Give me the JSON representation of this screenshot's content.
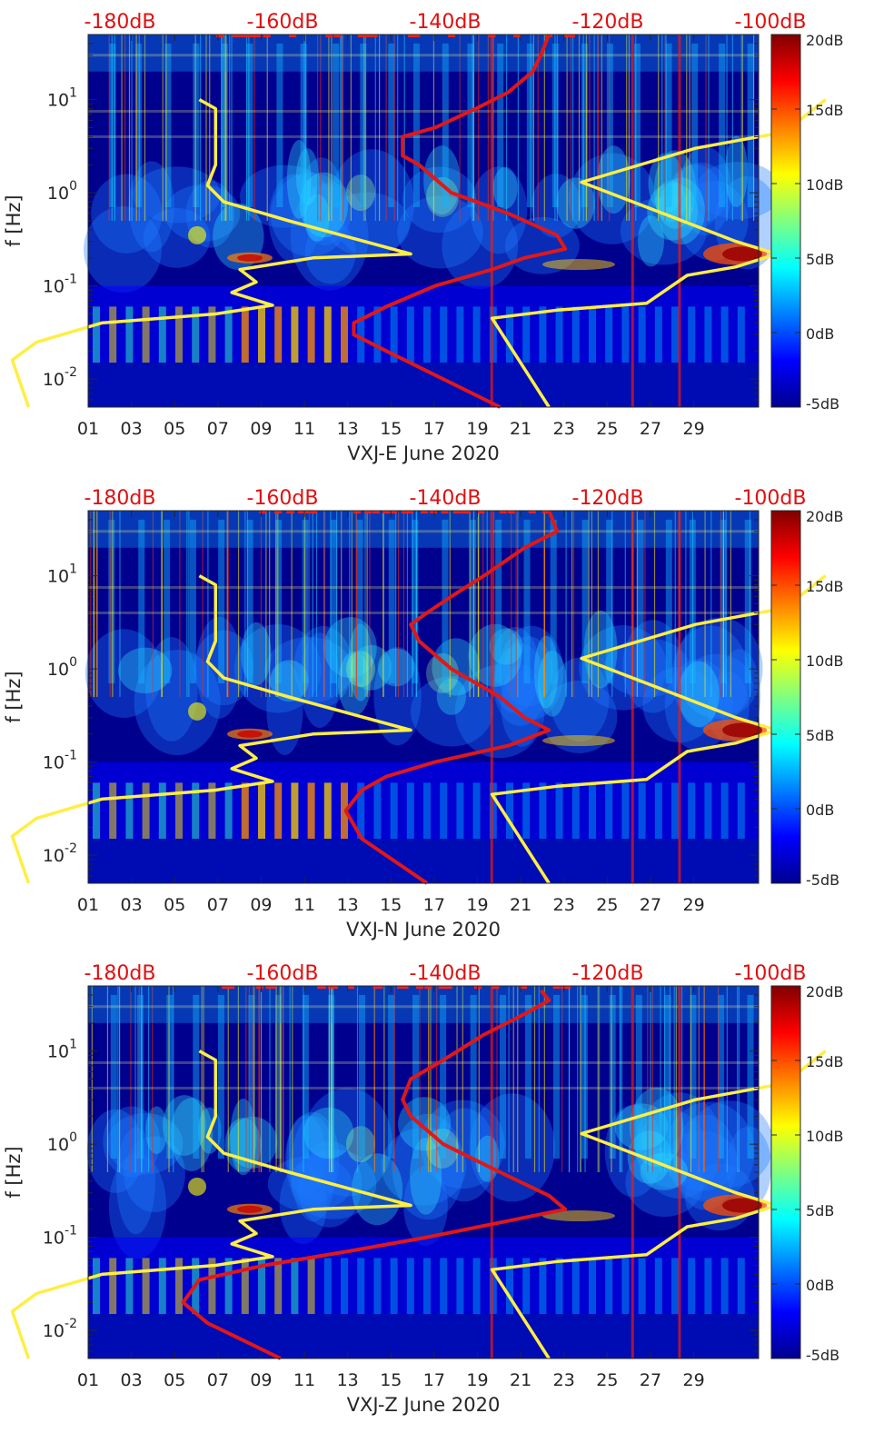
{
  "colors": {
    "spectrogram_low": "#00008f",
    "spectrogram_high": "#800000",
    "noise_model_line": "#ffee44",
    "median_psd_line": "#e01818",
    "top_axis_label": "#e01010"
  },
  "chart_data": [
    {
      "type": "heatmap",
      "title": "",
      "xlabel": "VXJ-E June 2020",
      "ylabel": "f [Hz]",
      "y_scale": "log",
      "ylim": [
        0.005,
        50
      ],
      "xlim": [
        1,
        32
      ],
      "x_tick_labels": [
        "01",
        "03",
        "05",
        "07",
        "09",
        "11",
        "13",
        "15",
        "17",
        "19",
        "21",
        "23",
        "25",
        "27",
        "29"
      ],
      "y_tick_labels": [
        {
          "base": "10",
          "exp": "-2"
        },
        {
          "base": "10",
          "exp": "-1"
        },
        {
          "base": "10",
          "exp": "0"
        },
        {
          "base": "10",
          "exp": "1"
        }
      ],
      "top_axis_labels": [
        "-180dB",
        "-160dB",
        "-140dB",
        "-120dB",
        "-100dB"
      ],
      "colorbar": {
        "range": [
          -5,
          20
        ],
        "tick_labels": [
          "20dB",
          "15dB",
          "10dB",
          "5dB",
          "0dB",
          "-5dB"
        ]
      },
      "grid": false,
      "overlay_lines": [
        {
          "color": "yellow",
          "label": "",
          "points": [
            [
              -189,
              0.005
            ],
            [
              -191,
              0.016
            ],
            [
              -188,
              0.025
            ],
            [
              -180,
              0.04
            ],
            [
              -166,
              0.05
            ],
            [
              -159,
              0.062
            ],
            [
              -164,
              0.085
            ],
            [
              -161,
              0.11
            ],
            [
              -163,
              0.15
            ],
            [
              -154,
              0.2
            ],
            [
              -142,
              0.22
            ],
            [
              -157,
              0.5
            ],
            [
              -165,
              0.8
            ],
            [
              -167,
              1.2
            ],
            [
              -166,
              2
            ],
            [
              -166,
              5
            ],
            [
              -166,
              8
            ],
            [
              -168,
              10
            ]
          ]
        },
        {
          "color": "yellow",
          "label": "",
          "points": [
            [
              -125,
              0.005
            ],
            [
              -132,
              0.045
            ],
            [
              -124,
              0.055
            ],
            [
              -113,
              0.065
            ],
            [
              -108,
              0.13
            ],
            [
              -102,
              0.16
            ],
            [
              -97,
              0.22
            ],
            [
              -102,
              0.3
            ],
            [
              -121,
              1.3
            ],
            [
              -107,
              3
            ],
            [
              -96,
              4.5
            ],
            [
              -91,
              10
            ]
          ]
        },
        {
          "color": "red",
          "label": "",
          "points": [
            [
              -131,
              0.005
            ],
            [
              -145,
              0.02
            ],
            [
              -149,
              0.03
            ],
            [
              -149,
              0.04
            ],
            [
              -145,
              0.06
            ],
            [
              -139,
              0.1
            ],
            [
              -132,
              0.15
            ],
            [
              -128,
              0.2
            ],
            [
              -123,
              0.25
            ],
            [
              -124,
              0.35
            ],
            [
              -130,
              0.6
            ],
            [
              -137,
              1
            ],
            [
              -141,
              2
            ],
            [
              -143,
              2.5
            ],
            [
              -143,
              4
            ],
            [
              -139,
              5
            ],
            [
              -134,
              8
            ],
            [
              -130,
              12
            ],
            [
              -127,
              20
            ],
            [
              -126,
              30
            ],
            [
              -125,
              50
            ]
          ]
        }
      ]
    },
    {
      "type": "heatmap",
      "title": "",
      "xlabel": "VXJ-N June 2020",
      "ylabel": "f [Hz]",
      "y_scale": "log",
      "ylim": [
        0.005,
        50
      ],
      "xlim": [
        1,
        32
      ],
      "x_tick_labels": [
        "01",
        "03",
        "05",
        "07",
        "09",
        "11",
        "13",
        "15",
        "17",
        "19",
        "21",
        "23",
        "25",
        "27",
        "29"
      ],
      "y_tick_labels": [
        {
          "base": "10",
          "exp": "-2"
        },
        {
          "base": "10",
          "exp": "-1"
        },
        {
          "base": "10",
          "exp": "0"
        },
        {
          "base": "10",
          "exp": "1"
        }
      ],
      "top_axis_labels": [
        "-180dB",
        "-160dB",
        "-140dB",
        "-120dB",
        "-100dB"
      ],
      "colorbar": {
        "range": [
          -5,
          20
        ],
        "tick_labels": [
          "20dB",
          "15dB",
          "10dB",
          "5dB",
          "0dB",
          "-5dB"
        ]
      },
      "grid": false,
      "overlay_lines": [
        {
          "color": "yellow",
          "label": "",
          "points": [
            [
              -189,
              0.005
            ],
            [
              -191,
              0.016
            ],
            [
              -188,
              0.025
            ],
            [
              -180,
              0.04
            ],
            [
              -166,
              0.05
            ],
            [
              -159,
              0.062
            ],
            [
              -164,
              0.085
            ],
            [
              -161,
              0.11
            ],
            [
              -163,
              0.15
            ],
            [
              -154,
              0.2
            ],
            [
              -142,
              0.22
            ],
            [
              -157,
              0.5
            ],
            [
              -165,
              0.8
            ],
            [
              -167,
              1.2
            ],
            [
              -166,
              2
            ],
            [
              -166,
              5
            ],
            [
              -166,
              8
            ],
            [
              -168,
              10
            ]
          ]
        },
        {
          "color": "yellow",
          "label": "",
          "points": [
            [
              -125,
              0.005
            ],
            [
              -132,
              0.045
            ],
            [
              -124,
              0.055
            ],
            [
              -113,
              0.065
            ],
            [
              -108,
              0.13
            ],
            [
              -102,
              0.16
            ],
            [
              -97,
              0.22
            ],
            [
              -102,
              0.3
            ],
            [
              -121,
              1.3
            ],
            [
              -107,
              3
            ],
            [
              -96,
              4.5
            ],
            [
              -91,
              10
            ]
          ]
        },
        {
          "color": "red",
          "label": "",
          "points": [
            [
              -140,
              0.005
            ],
            [
              -148,
              0.015
            ],
            [
              -150,
              0.03
            ],
            [
              -148,
              0.05
            ],
            [
              -145,
              0.07
            ],
            [
              -139,
              0.1
            ],
            [
              -130,
              0.15
            ],
            [
              -125,
              0.22
            ],
            [
              -128,
              0.3
            ],
            [
              -131,
              0.5
            ],
            [
              -137,
              1
            ],
            [
              -141,
              2
            ],
            [
              -142,
              3
            ],
            [
              -140,
              4
            ],
            [
              -137,
              6
            ],
            [
              -133,
              10
            ],
            [
              -128,
              20
            ],
            [
              -124,
              30
            ],
            [
              -125,
              50
            ]
          ]
        }
      ]
    },
    {
      "type": "heatmap",
      "title": "",
      "xlabel": "VXJ-Z June 2020",
      "ylabel": "f [Hz]",
      "y_scale": "log",
      "ylim": [
        0.005,
        50
      ],
      "xlim": [
        1,
        32
      ],
      "x_tick_labels": [
        "01",
        "03",
        "05",
        "07",
        "09",
        "11",
        "13",
        "15",
        "17",
        "19",
        "21",
        "23",
        "25",
        "27",
        "29"
      ],
      "y_tick_labels": [
        {
          "base": "10",
          "exp": "-2"
        },
        {
          "base": "10",
          "exp": "-1"
        },
        {
          "base": "10",
          "exp": "0"
        },
        {
          "base": "10",
          "exp": "1"
        }
      ],
      "top_axis_labels": [
        "-180dB",
        "-160dB",
        "-140dB",
        "-120dB",
        "-100dB"
      ],
      "colorbar": {
        "range": [
          -5,
          20
        ],
        "tick_labels": [
          "20dB",
          "15dB",
          "10dB",
          "5dB",
          "0dB",
          "-5dB"
        ]
      },
      "grid": false,
      "overlay_lines": [
        {
          "color": "yellow",
          "label": "",
          "points": [
            [
              -189,
              0.005
            ],
            [
              -191,
              0.016
            ],
            [
              -188,
              0.025
            ],
            [
              -180,
              0.04
            ],
            [
              -166,
              0.05
            ],
            [
              -159,
              0.062
            ],
            [
              -164,
              0.085
            ],
            [
              -161,
              0.11
            ],
            [
              -163,
              0.15
            ],
            [
              -154,
              0.2
            ],
            [
              -142,
              0.22
            ],
            [
              -157,
              0.5
            ],
            [
              -165,
              0.8
            ],
            [
              -167,
              1.2
            ],
            [
              -166,
              2
            ],
            [
              -166,
              5
            ],
            [
              -166,
              8
            ],
            [
              -168,
              10
            ]
          ]
        },
        {
          "color": "yellow",
          "label": "",
          "points": [
            [
              -125,
              0.005
            ],
            [
              -132,
              0.045
            ],
            [
              -124,
              0.055
            ],
            [
              -113,
              0.065
            ],
            [
              -108,
              0.13
            ],
            [
              -102,
              0.16
            ],
            [
              -97,
              0.22
            ],
            [
              -102,
              0.3
            ],
            [
              -121,
              1.3
            ],
            [
              -107,
              3
            ],
            [
              -96,
              4.5
            ],
            [
              -91,
              10
            ]
          ]
        },
        {
          "color": "red",
          "label": "",
          "points": [
            [
              -158,
              0.005
            ],
            [
              -167,
              0.012
            ],
            [
              -170,
              0.02
            ],
            [
              -168,
              0.035
            ],
            [
              -160,
              0.05
            ],
            [
              -150,
              0.07
            ],
            [
              -140,
              0.1
            ],
            [
              -130,
              0.15
            ],
            [
              -123,
              0.2
            ],
            [
              -125,
              0.28
            ],
            [
              -131,
              0.5
            ],
            [
              -138,
              1
            ],
            [
              -142,
              2
            ],
            [
              -143,
              3
            ],
            [
              -142,
              5
            ],
            [
              -138,
              8
            ],
            [
              -133,
              15
            ],
            [
              -128,
              25
            ],
            [
              -125,
              35
            ],
            [
              -126,
              45
            ]
          ]
        }
      ]
    }
  ]
}
